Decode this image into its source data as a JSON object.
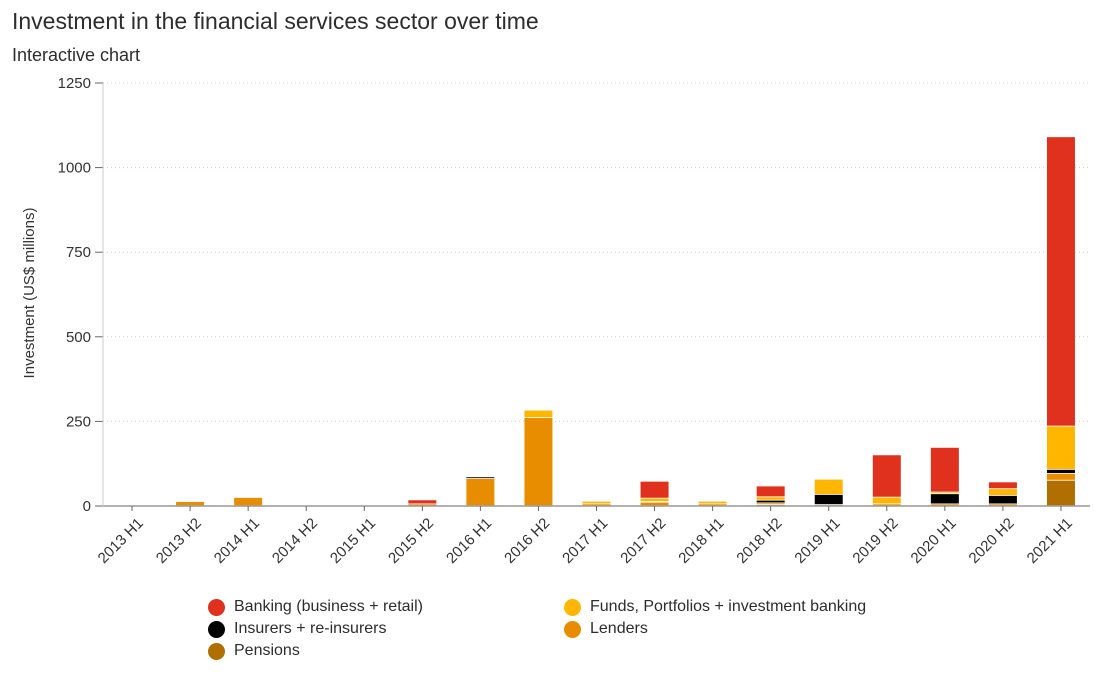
{
  "header": {
    "title": "Investment in the financial services sector over time",
    "subtitle": "Interactive chart"
  },
  "chart_data": {
    "type": "bar",
    "stacked": true,
    "title": "Investment in the financial services sector over time",
    "xlabel": "",
    "ylabel": "Investment (US$ millions)",
    "ylim": [
      0,
      1250
    ],
    "yticks": [
      0,
      250,
      500,
      750,
      1000,
      1250
    ],
    "grid": true,
    "categories": [
      "2013 H1",
      "2013 H2",
      "2014 H1",
      "2014 H2",
      "2015 H1",
      "2015 H2",
      "2016 H1",
      "2016 H2",
      "2017 H1",
      "2017 H2",
      "2018 H1",
      "2018 H2",
      "2019 H1",
      "2019 H2",
      "2020 H1",
      "2020 H2",
      "2021 H1"
    ],
    "series": [
      {
        "name": "Pensions",
        "color": "#b06f00",
        "values": [
          0,
          0,
          0,
          0,
          0,
          0,
          0,
          0,
          0,
          0,
          0,
          3,
          0,
          0,
          0,
          0,
          75
        ]
      },
      {
        "name": "Lenders",
        "color": "#e88d00",
        "values": [
          0,
          12,
          24,
          0,
          0,
          5,
          80,
          260,
          5,
          10,
          5,
          5,
          3,
          5,
          5,
          5,
          20
        ]
      },
      {
        "name": "Insurers + re-insurers",
        "color": "#000000",
        "values": [
          0,
          0,
          0,
          0,
          0,
          0,
          5,
          0,
          0,
          2,
          0,
          8,
          30,
          0,
          30,
          25,
          12
        ]
      },
      {
        "name": "Funds, Portfolios + investment banking",
        "color": "#ffb600",
        "values": [
          0,
          0,
          0,
          0,
          0,
          0,
          0,
          22,
          8,
          10,
          8,
          10,
          45,
          20,
          5,
          20,
          128
        ]
      },
      {
        "name": "Banking (business + retail)",
        "color": "#e0301e",
        "values": [
          0,
          0,
          0,
          0,
          0,
          12,
          0,
          0,
          0,
          50,
          0,
          32,
          0,
          125,
          132,
          20,
          855
        ]
      }
    ],
    "legend_position": "bottom",
    "legend_order": [
      "Banking (business + retail)",
      "Funds, Portfolios + investment banking",
      "Insurers + re-insurers",
      "Lenders",
      "Pensions"
    ]
  }
}
